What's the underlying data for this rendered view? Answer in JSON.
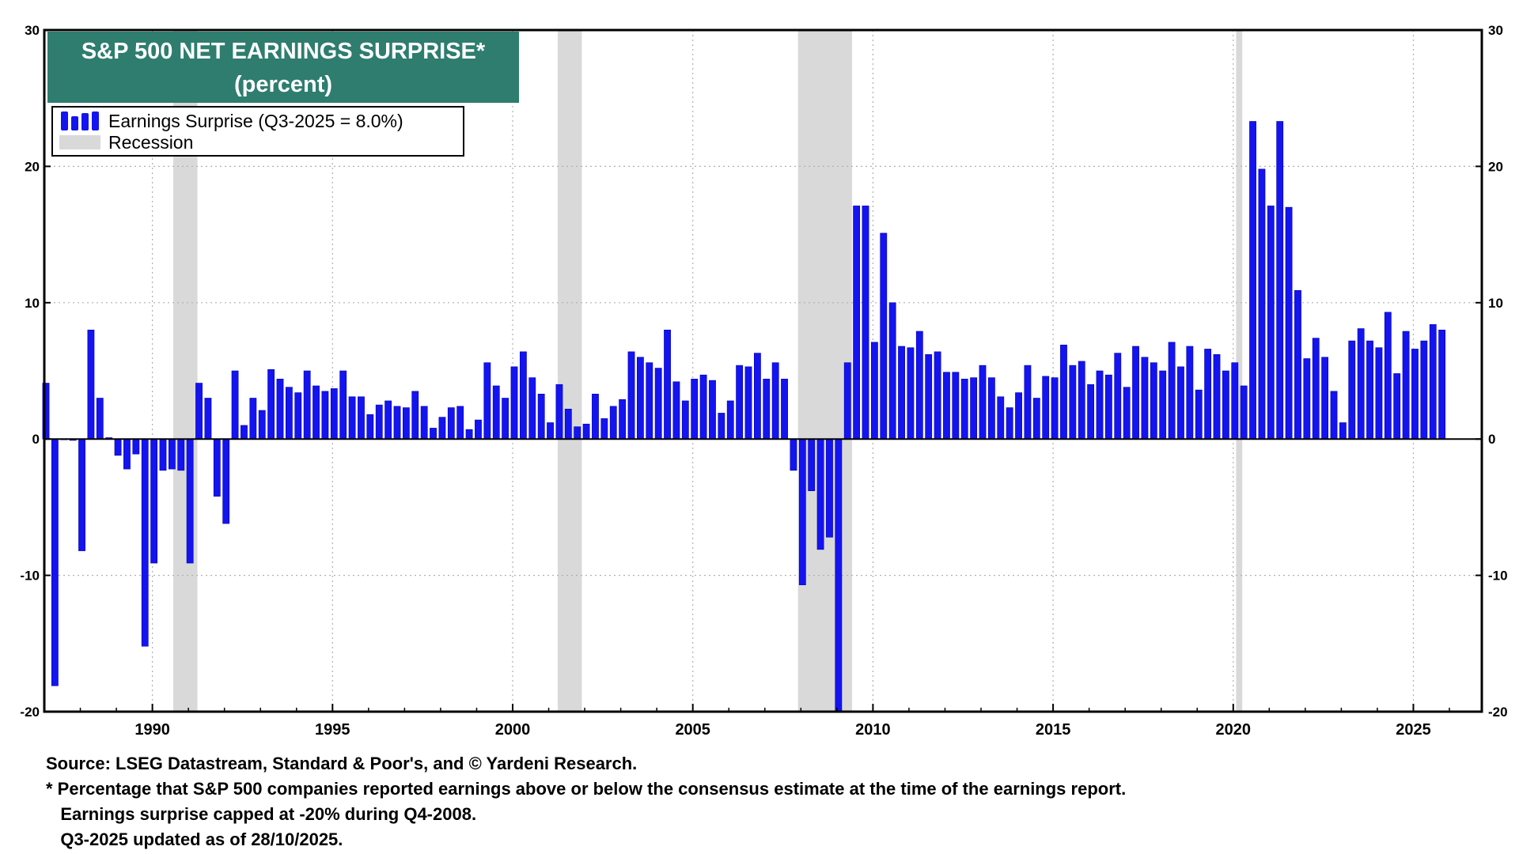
{
  "title": "S&P 500 NET EARNINGS SURPRISE*",
  "subtitle": "(percent)",
  "legend": {
    "series_label": "Earnings Surprise (Q3-2025 = 8.0%)",
    "recession_label": "Recession"
  },
  "footnotes": {
    "source": "Source: LSEG Datastream, Standard & Poor's, and © Yardeni Research.",
    "note1": "* Percentage that S&P 500 companies reported earnings above or below the consensus estimate at the time of the earnings report.",
    "note2": "   Earnings surprise capped at -20% during Q4-2008.",
    "note3": "   Q3-2025 updated as of 28/10/2025."
  },
  "colors": {
    "bars": "#1414f0",
    "recession": "#d9d9d9",
    "title_bg": "#2e7d6e",
    "title_text": "#ffffff"
  },
  "chart_data": {
    "type": "bar",
    "ylim": [
      -20,
      30
    ],
    "xlim": [
      1987.0,
      2026.9
    ],
    "y_ticks": [
      -20,
      -10,
      0,
      10,
      20,
      30
    ],
    "x_ticks": [
      1990,
      1995,
      2000,
      2005,
      2010,
      2015,
      2020,
      2025
    ],
    "grid": true,
    "legend_position": "top-left",
    "x_start": "Q1-1987",
    "x_end": "Q3-2025",
    "recessions": [
      [
        1990.58,
        1991.25
      ],
      [
        2001.25,
        2001.92
      ],
      [
        2007.92,
        2009.42
      ],
      [
        2020.08,
        2020.25
      ]
    ],
    "series": [
      {
        "name": "Earnings Surprise",
        "values": [
          4.1,
          -18.1,
          0.0,
          -0.1,
          -8.2,
          8.0,
          3.0,
          0.1,
          -1.2,
          -2.2,
          -1.1,
          -15.2,
          -9.1,
          -2.3,
          -2.2,
          -2.3,
          -9.1,
          4.1,
          3.0,
          -4.2,
          -6.2,
          5.0,
          1.0,
          3.0,
          2.1,
          5.1,
          4.4,
          3.8,
          3.4,
          5.0,
          3.9,
          3.5,
          3.7,
          5.0,
          3.1,
          3.1,
          1.8,
          2.5,
          2.8,
          2.4,
          2.3,
          3.5,
          2.4,
          0.8,
          1.6,
          2.3,
          2.4,
          0.7,
          1.4,
          5.6,
          3.9,
          3.0,
          5.3,
          6.4,
          4.5,
          3.3,
          1.2,
          4.0,
          2.2,
          0.9,
          1.1,
          3.3,
          1.5,
          2.4,
          2.9,
          6.4,
          6.0,
          5.6,
          5.2,
          8.0,
          4.2,
          2.8,
          4.4,
          4.7,
          4.3,
          1.9,
          2.8,
          5.4,
          5.3,
          6.3,
          4.4,
          5.6,
          4.4,
          -2.3,
          -10.7,
          -3.8,
          -8.1,
          -7.2,
          -20.0,
          5.6,
          17.1,
          17.1,
          7.1,
          15.1,
          10.0,
          6.8,
          6.7,
          7.9,
          6.2,
          6.4,
          4.9,
          4.9,
          4.4,
          4.5,
          5.4,
          4.5,
          3.1,
          2.3,
          3.4,
          5.4,
          3.0,
          4.6,
          4.5,
          6.9,
          5.4,
          5.7,
          4.0,
          5.0,
          4.7,
          6.3,
          3.8,
          6.8,
          6.0,
          5.6,
          5.0,
          7.1,
          5.3,
          6.8,
          3.6,
          6.6,
          6.2,
          5.0,
          5.6,
          3.9,
          23.3,
          19.8,
          17.1,
          23.3,
          17.0,
          10.9,
          5.9,
          7.4,
          6.0,
          3.5,
          1.2,
          7.2,
          8.1,
          7.2,
          6.7,
          9.3,
          4.8,
          7.9,
          6.6,
          7.2,
          8.4,
          8.0
        ]
      }
    ]
  }
}
